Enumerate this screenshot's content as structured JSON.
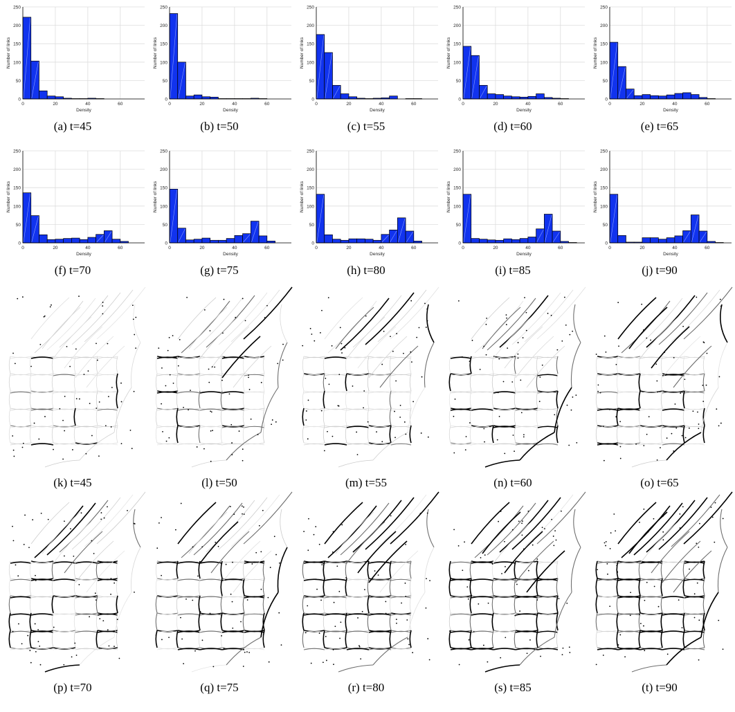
{
  "axis": {
    "xlabel": "Density",
    "ylabel": "Number of links",
    "xticks": [
      "0",
      "20",
      "40",
      "60"
    ],
    "yticks": [
      "0",
      "50",
      "100",
      "150",
      "200",
      "250"
    ],
    "xlim": [
      0,
      75
    ],
    "ylim": [
      0,
      250
    ]
  },
  "colors": {
    "bar": "#1133ee",
    "bar_stroke": "#000000",
    "grid": "#dddddd"
  },
  "chart_data": [
    {
      "type": "bar",
      "caption": "(a)  t=45",
      "bin_width": 5,
      "values": [
        222,
        103,
        22,
        8,
        6,
        2,
        1,
        1,
        2,
        1,
        0,
        0,
        0,
        0,
        0
      ]
    },
    {
      "type": "bar",
      "caption": "(b)  t=50",
      "bin_width": 5,
      "values": [
        232,
        100,
        8,
        11,
        6,
        5,
        1,
        1,
        1,
        1,
        2,
        1,
        0,
        0,
        0
      ]
    },
    {
      "type": "bar",
      "caption": "(c)  t=55",
      "bin_width": 5,
      "values": [
        175,
        126,
        37,
        14,
        6,
        2,
        1,
        2,
        3,
        8,
        0,
        1,
        1,
        0,
        0
      ]
    },
    {
      "type": "bar",
      "caption": "(d)  t=60",
      "bin_width": 5,
      "values": [
        143,
        118,
        37,
        14,
        12,
        8,
        6,
        5,
        7,
        14,
        4,
        2,
        1,
        0,
        0
      ]
    },
    {
      "type": "bar",
      "caption": "(e)  t=65",
      "bin_width": 5,
      "values": [
        154,
        88,
        27,
        9,
        12,
        9,
        8,
        11,
        15,
        17,
        12,
        4,
        1,
        0,
        0
      ]
    },
    {
      "type": "bar",
      "caption": "(f)  t=70",
      "bin_width": 5,
      "values": [
        136,
        74,
        22,
        9,
        10,
        12,
        13,
        9,
        15,
        23,
        33,
        10,
        4,
        0,
        0
      ]
    },
    {
      "type": "bar",
      "caption": "(g)  t=75",
      "bin_width": 5,
      "values": [
        146,
        40,
        8,
        10,
        13,
        7,
        7,
        12,
        20,
        25,
        59,
        19,
        5,
        0,
        0
      ]
    },
    {
      "type": "bar",
      "caption": "(h)  t=80",
      "bin_width": 5,
      "values": [
        132,
        22,
        10,
        7,
        11,
        11,
        10,
        7,
        23,
        35,
        68,
        32,
        5,
        0,
        0
      ]
    },
    {
      "type": "bar",
      "caption": "(i)  t=85",
      "bin_width": 5,
      "values": [
        132,
        12,
        10,
        8,
        7,
        11,
        9,
        12,
        16,
        38,
        78,
        32,
        4,
        1,
        0
      ]
    },
    {
      "type": "bar",
      "caption": "(j)  t=90",
      "bin_width": 5,
      "values": [
        132,
        20,
        2,
        2,
        14,
        14,
        10,
        14,
        19,
        33,
        76,
        32,
        4,
        1,
        0
      ]
    }
  ],
  "networks": [
    {
      "caption": "(k)  t=45",
      "darkness": 0.15
    },
    {
      "caption": "(l)  t=50",
      "darkness": 0.2
    },
    {
      "caption": "(m)  t=55",
      "darkness": 0.18
    },
    {
      "caption": "(n)  t=60",
      "darkness": 0.35
    },
    {
      "caption": "(o)  t=65",
      "darkness": 0.45
    },
    {
      "caption": "(p)  t=70",
      "darkness": 0.55
    },
    {
      "caption": "(q)  t=75",
      "darkness": 0.62
    },
    {
      "caption": "(r)  t=80",
      "darkness": 0.72
    },
    {
      "caption": "(s)  t=85",
      "darkness": 0.8
    },
    {
      "caption": "(t)  t=90",
      "darkness": 0.82
    }
  ]
}
